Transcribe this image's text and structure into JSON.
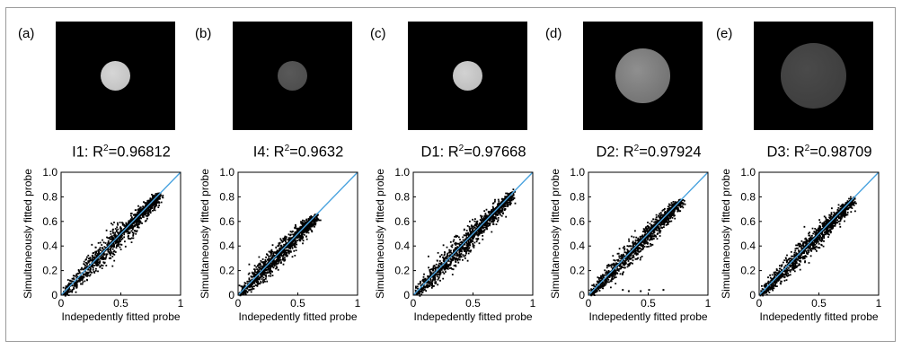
{
  "panels": [
    {
      "label": "(a)",
      "title_prefix": "I1: R",
      "title_sup": "2",
      "title_suffix": "=0.96812",
      "disc": {
        "color": "#d6d6d6",
        "texture": "#bdbdbd",
        "radius": 0.14
      },
      "scatter": {
        "max": 0.82,
        "spread": 0.055,
        "outliers": []
      }
    },
    {
      "label": "(b)",
      "title_prefix": "I4: R",
      "title_sup": "2",
      "title_suffix": "=0.9632",
      "disc": {
        "color": "#595959",
        "texture": "#4a4a4a",
        "radius": 0.14
      },
      "scatter": {
        "max": 0.65,
        "spread": 0.05,
        "outliers": []
      }
    },
    {
      "label": "(c)",
      "title_prefix": "D1: R",
      "title_sup": "2",
      "title_suffix": "=0.97668",
      "disc": {
        "color": "#d2d2d2",
        "texture": "#b8b8b8",
        "radius": 0.14
      },
      "scatter": {
        "max": 0.83,
        "spread": 0.055,
        "outliers": []
      }
    },
    {
      "label": "(d)",
      "title_prefix": "D2: R",
      "title_sup": "2",
      "title_suffix": "=0.97924",
      "disc": {
        "color": "#8f8f8f",
        "texture": "#6a6a6a",
        "radius": 0.25
      },
      "scatter": {
        "max": 0.78,
        "spread": 0.05,
        "outliers": [
          [
            0.28,
            0.05
          ],
          [
            0.33,
            0.04
          ],
          [
            0.43,
            0.04
          ],
          [
            0.5,
            0.05
          ],
          [
            0.62,
            0.05
          ]
        ]
      }
    },
    {
      "label": "(e)",
      "title_prefix": "D3: R",
      "title_sup": "2",
      "title_suffix": "=0.98709",
      "disc": {
        "color": "#4a4a4a",
        "texture": "#3a3a3a",
        "radius": 0.3
      },
      "scatter": {
        "max": 0.78,
        "spread": 0.05,
        "outliers": []
      }
    }
  ],
  "chart_data": [
    {
      "type": "scatter",
      "title": "I1: R²=0.96812",
      "xlabel": "Indepedently fitted probe",
      "ylabel": "Simultaneously fitted probe",
      "xlim": [
        0,
        1
      ],
      "ylim": [
        0,
        1
      ],
      "xticks": [
        "0",
        "0.5",
        "1"
      ],
      "yticks": [
        "0",
        "0.2",
        "0.4",
        "0.6",
        "0.8",
        "1.0"
      ],
      "series": [
        {
          "values": "dense cloud along y=x, from (0,0) to about (0.82,0.82)"
        }
      ],
      "reference_line": "y = x"
    },
    {
      "type": "scatter",
      "title": "I4: R²=0.9632",
      "xlabel": "Indepedently fitted probe",
      "ylabel": "Simultaneously fitted probe",
      "xlim": [
        0,
        1
      ],
      "ylim": [
        0,
        1
      ],
      "xticks": [
        "0",
        "0.5",
        "1"
      ],
      "yticks": [
        "0",
        "0.2",
        "0.4",
        "0.6",
        "0.8",
        "1.0"
      ],
      "series": [
        {
          "values": "dense cloud along y=x, from (0,0) to about (0.65,0.65)"
        }
      ],
      "reference_line": "y = x"
    },
    {
      "type": "scatter",
      "title": "D1: R²=0.97668",
      "xlabel": "Indepedently fitted probe",
      "ylabel": "Simultaneously fitted probe",
      "xlim": [
        0,
        1
      ],
      "ylim": [
        0,
        1
      ],
      "xticks": [
        "0",
        "0.5",
        "1"
      ],
      "yticks": [
        "0",
        "0.2",
        "0.4",
        "0.6",
        "0.8",
        "1.0"
      ],
      "series": [
        {
          "values": "dense cloud along y=x, from (0,0) to about (0.83,0.83)"
        }
      ],
      "reference_line": "y = x"
    },
    {
      "type": "scatter",
      "title": "D2: R²=0.97924",
      "xlabel": "Indepedently fitted probe",
      "ylabel": "Simultaneously fitted probe",
      "xlim": [
        0,
        1
      ],
      "ylim": [
        0,
        1
      ],
      "xticks": [
        "0",
        "0.5",
        "1"
      ],
      "yticks": [
        "0",
        "0.2",
        "0.4",
        "0.6",
        "0.8",
        "1.0"
      ],
      "series": [
        {
          "values": "dense cloud along y=x, from (0,0) to about (0.78,0.78), few outliers near y=0.05"
        }
      ],
      "reference_line": "y = x"
    },
    {
      "type": "scatter",
      "title": "D3: R²=0.98709",
      "xlabel": "Indepedently fitted probe",
      "ylabel": "Simultaneously fitted probe",
      "xlim": [
        0,
        1
      ],
      "ylim": [
        0,
        1
      ],
      "xticks": [
        "0",
        "0.5",
        "1"
      ],
      "yticks": [
        "0",
        "0.2",
        "0.4",
        "0.6",
        "0.8",
        "1.0"
      ],
      "series": [
        {
          "values": "dense cloud along y=x, from (0,0) to about (0.78,0.78)"
        }
      ],
      "reference_line": "y = x"
    }
  ],
  "axes": {
    "xlabel": "Indepedently fitted probe",
    "ylabel": "Simultaneously fitted probe",
    "yticks": [
      "0",
      "0.2",
      "0.4",
      "0.6",
      "0.8",
      "1.0"
    ],
    "xticks": [
      "0",
      "0.5",
      "1"
    ],
    "line_color": "#4aa3df"
  }
}
